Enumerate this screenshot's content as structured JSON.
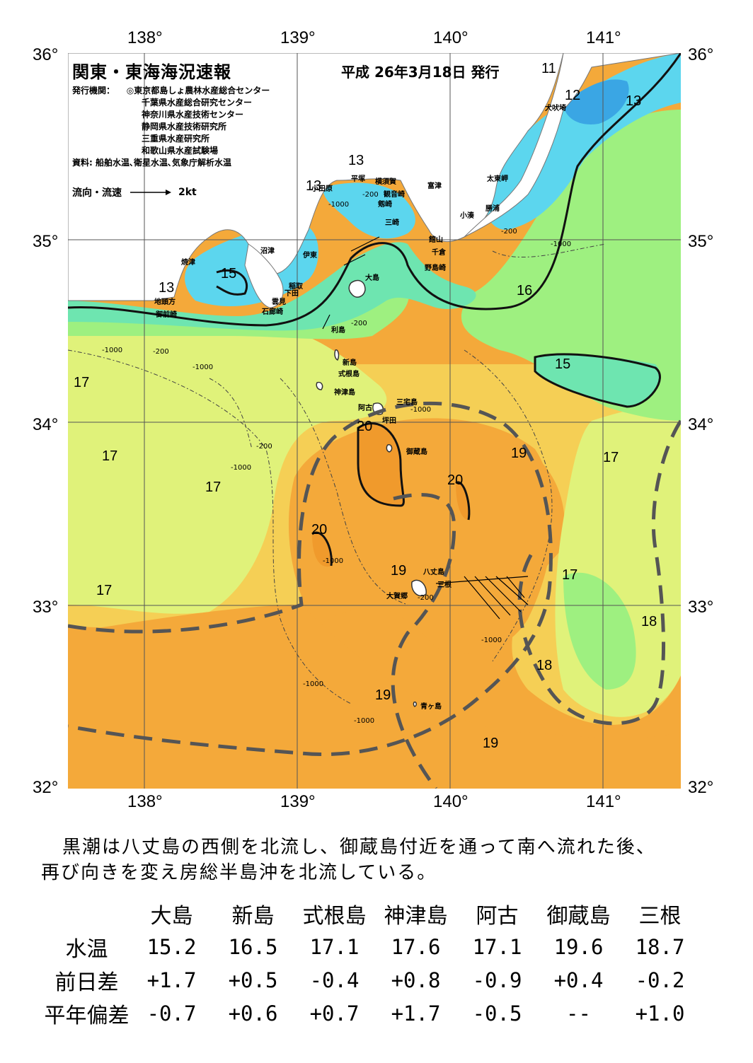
{
  "title": "関東・東海海況速報",
  "issue_date": "平成 26年3月18日 発行",
  "issuer_label": "発行機関：",
  "issuers": [
    "◎東京都島しょ農林水産総合センター",
    "千葉県水産総合研究センター",
    "神奈川県水産技術センター",
    "静岡県水産技術研究所",
    "三重県水産研究所",
    "和歌山県水産試験場"
  ],
  "sources": "資料: 船舶水温､衛星水温､気象庁解析水温",
  "flow_legend": {
    "label": "流向・流速",
    "speed": "2kt"
  },
  "axes": {
    "lon_labels": [
      "138°",
      "139°",
      "140°",
      "141°"
    ],
    "lat_labels": [
      "36°",
      "35°",
      "34°",
      "33°",
      "32°"
    ]
  },
  "colors": {
    "water_13": "#5cd6ee",
    "water_14": "#2fb6e8",
    "water_12": "#3aa6e4",
    "water_15": "#6ee5b0",
    "water_16": "#9ef080",
    "water_17": "#e0f27a",
    "water_18": "#f5cf55",
    "water_19": "#f4a93a",
    "water_20": "#f09a2c",
    "land": "#ffffff",
    "kuroshio_axis": "#555555"
  },
  "isotherm_labels": [
    "11",
    "12",
    "13",
    "13",
    "13",
    "13",
    "15",
    "15",
    "16",
    "17",
    "17",
    "17",
    "17",
    "17",
    "17",
    "18",
    "18",
    "19",
    "19",
    "19",
    "19",
    "20",
    "20",
    "20"
  ],
  "depth_labels": [
    "-200",
    "-200",
    "-200",
    "-200",
    "-200",
    "-200",
    "-1000",
    "-1000",
    "-1000",
    "-1000",
    "-1000",
    "-1000",
    "-1000",
    "-1000",
    "-1000",
    "-1000"
  ],
  "places": {
    "inubo": "犬吠埼",
    "taito": "太東岬",
    "katsuura": "勝浦",
    "kominato": "小湊",
    "futtsu": "富津",
    "kannonzaki": "観音崎",
    "yokosuka": "横須賀",
    "hiratsuka": "平塚",
    "odawara": "小田原",
    "tsurugizaki": "剱崎",
    "misaki": "三崎",
    "tateyama": "館山",
    "chikura": "千倉",
    "nojimazaki": "野島崎",
    "numazu": "沼津",
    "ito": "伊東",
    "yaizu": "焼津",
    "inatori": "稲取",
    "shimoda": "下田",
    "kumomi": "雲見",
    "irozaki": "石廊崎",
    "jitogata": "地頭方",
    "omaezaki": "御前崎",
    "oshima": "大島",
    "toshima": "利島",
    "niijima": "新島",
    "shikinejima": "式根島",
    "kozushima": "神津島",
    "miyake": "三宅島",
    "ako": "阿古",
    "tsubota": "坪田",
    "mikurajima": "御蔵島",
    "hachijo": "八丈島",
    "okago": "大賀郷",
    "mitsune": "三根",
    "aogashima": "青ヶ島"
  },
  "comment": [
    "黒潮は八丈島の西側を北流し、御蔵島付近を通って南へ流れた後、",
    "再び向きを変え房総半島沖を北流している。"
  ],
  "table": {
    "columns": [
      "大島",
      "新島",
      "式根島",
      "神津島",
      "阿古",
      "御蔵島",
      "三根"
    ],
    "rows": [
      {
        "label": "水温",
        "values": [
          "15.2",
          "16.5",
          "17.1",
          "17.6",
          "17.1",
          "19.6",
          "18.7"
        ]
      },
      {
        "label": "前日差",
        "values": [
          "+1.7",
          "+0.5",
          "-0.4",
          "+0.8",
          "-0.9",
          "+0.4",
          "-0.2"
        ]
      },
      {
        "label": "平年偏差",
        "values": [
          "-0.7",
          "+0.6",
          "+0.7",
          "+1.7",
          "-0.5",
          "--",
          "+1.0"
        ]
      }
    ]
  }
}
